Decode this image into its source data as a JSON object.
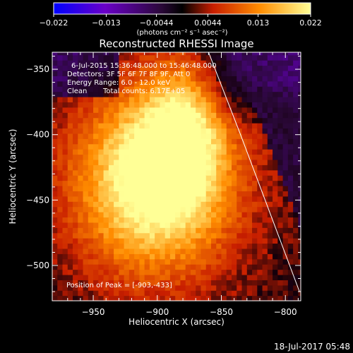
{
  "chart_data": {
    "type": "heatmap",
    "title": "Reconstructed RHESSI Image",
    "xlabel": "Heliocentric X (arcsec)",
    "ylabel": "Heliocentric Y (arcsec)",
    "xlim": [
      -982,
      -788
    ],
    "ylim": [
      -527,
      -337
    ],
    "x_ticks": [
      -950,
      -900,
      -850,
      -800
    ],
    "y_ticks": [
      -350,
      -400,
      -450,
      -500
    ],
    "colorbar": {
      "ticks": [
        "-0.022",
        "-0.013",
        "-0.0044",
        "0.0044",
        "0.013",
        "0.022"
      ],
      "range": [
        -0.022,
        0.022
      ],
      "units": "(photons cm⁻² s⁻¹ asec⁻²)",
      "colormap": [
        "#0000ff",
        "#6a00c8",
        "#3c0a50",
        "#000000",
        "#c81e00",
        "#ff8c00",
        "#ffff96"
      ]
    },
    "annotations": [
      "6-Jul-2015 15:36:48.000 to 15:46:48.000",
      "Detectors: 3F 5F 6F 7F 8F 9F, Att 0",
      "Energy Range: 6.0 - 12.0 keV",
      "Clean",
      "Total counts: 6.17E+05"
    ],
    "peak_label": "Position of Peak = [-903,-433]",
    "peak": [
      -903,
      -433
    ],
    "limb_curve": [
      [
        -860,
        -337
      ],
      [
        -835,
        -400
      ],
      [
        -812,
        -460
      ],
      [
        -789,
        -520
      ]
    ]
  },
  "footer_date": "18-Jul-2017 05:48"
}
